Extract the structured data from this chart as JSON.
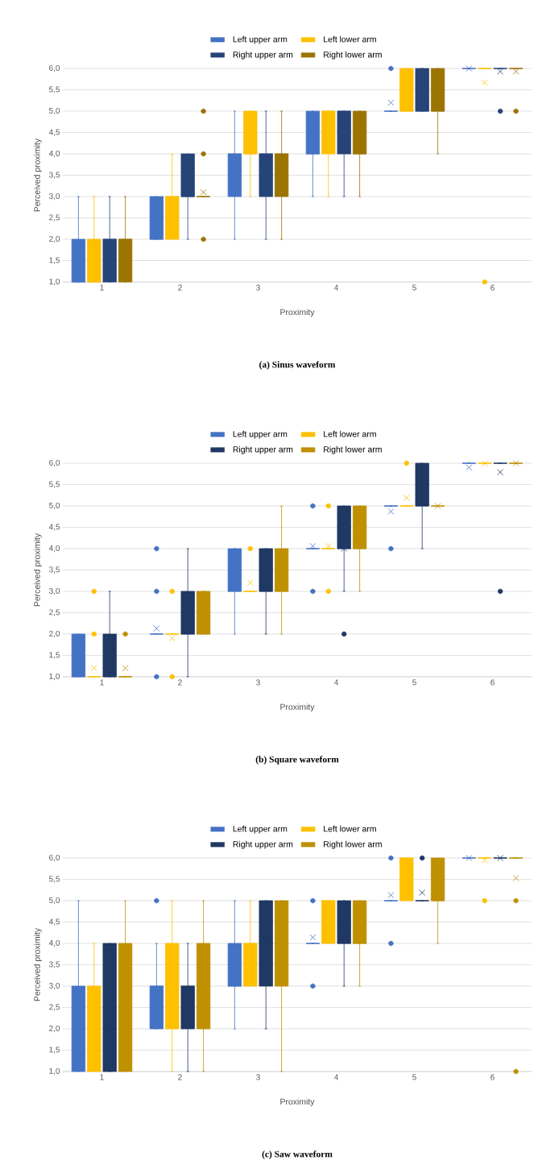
{
  "chart_data": [
    {
      "type": "box",
      "title": "(a) Sinus waveform",
      "xlabel": "Proximity",
      "ylabel": "Perceived proximity",
      "categories": [
        "1",
        "2",
        "3",
        "4",
        "5",
        "6"
      ],
      "ylim": [
        1,
        6
      ],
      "yticks": [
        {
          "value": 1,
          "label": "1,0"
        },
        {
          "value": 1.5,
          "label": "1,5"
        },
        {
          "value": 2,
          "label": "2,0"
        },
        {
          "value": 2.5,
          "label": "2,5"
        },
        {
          "value": 3,
          "label": "3,0"
        },
        {
          "value": 3.5,
          "label": "3,5"
        },
        {
          "value": 4,
          "label": "4,0"
        },
        {
          "value": 4.5,
          "label": "4,5"
        },
        {
          "value": 5,
          "label": "5,0"
        },
        {
          "value": 5.5,
          "label": "5,5"
        },
        {
          "value": 6,
          "label": "6,0"
        }
      ],
      "grid": "y",
      "legend": "top",
      "series": [
        {
          "name": "Left upper arm",
          "color": "#4472c4",
          "boxes": [
            {
              "low": 1,
              "q1": 1,
              "median": 1,
              "q3": 2,
              "high": 3,
              "mean": 1.46
            },
            {
              "low": 2,
              "q1": 2,
              "median": 2,
              "q3": 3,
              "high": 3,
              "mean": 2.48
            },
            {
              "low": 2,
              "q1": 3,
              "median": 4,
              "q3": 4,
              "high": 5,
              "mean": 3.53
            },
            {
              "low": 3,
              "q1": 4,
              "median": 4,
              "q3": 5,
              "high": 5,
              "mean": 4.19
            },
            {
              "low": 5,
              "q1": 5,
              "median": 5,
              "q3": 5,
              "high": 5,
              "mean": 5.2,
              "outliers": [
                6
              ]
            },
            {
              "low": 6,
              "q1": 6,
              "median": 6,
              "q3": 6,
              "high": 6,
              "mean": 6
            }
          ]
        },
        {
          "name": "Left lower arm",
          "color": "#ffc000",
          "boxes": [
            {
              "low": 1,
              "q1": 1,
              "median": 1,
              "q3": 2,
              "high": 3,
              "mean": 1.46
            },
            {
              "low": 2,
              "q1": 2,
              "median": 3,
              "q3": 3,
              "high": 4,
              "mean": 2.59
            },
            {
              "low": 3,
              "q1": 4,
              "median": 4,
              "q3": 5,
              "high": 5,
              "mean": 4.09
            },
            {
              "low": 3,
              "q1": 4,
              "median": 5,
              "q3": 5,
              "high": 5,
              "mean": 4.66
            },
            {
              "low": 5,
              "q1": 5,
              "median": 5,
              "q3": 6,
              "high": 6,
              "mean": 5.41
            },
            {
              "low": 6,
              "q1": 6,
              "median": 6,
              "q3": 6,
              "high": 6,
              "mean": 5.67,
              "outliers": [
                1
              ]
            }
          ]
        },
        {
          "name": "Right upper arm",
          "color": "#264478",
          "boxes": [
            {
              "low": 1,
              "q1": 1,
              "median": 2,
              "q3": 2,
              "high": 3,
              "mean": 1.76
            },
            {
              "low": 2,
              "q1": 3,
              "median": 3,
              "q3": 4,
              "high": 4,
              "mean": 3.1
            },
            {
              "low": 2,
              "q1": 3,
              "median": 4,
              "q3": 4,
              "high": 5,
              "mean": 3.8
            },
            {
              "low": 3,
              "q1": 4,
              "median": 5,
              "q3": 5,
              "high": 5,
              "mean": 4.45
            },
            {
              "low": 5,
              "q1": 5,
              "median": 5,
              "q3": 6,
              "high": 6,
              "mean": 5.34
            },
            {
              "low": 6,
              "q1": 6,
              "median": 6,
              "q3": 6,
              "high": 6,
              "mean": 5.93,
              "outliers": [
                5
              ]
            }
          ]
        },
        {
          "name": "Right lower arm",
          "color": "#9c7400",
          "boxes": [
            {
              "low": 1,
              "q1": 1,
              "median": 2,
              "q3": 2,
              "high": 3,
              "mean": 1.86
            },
            {
              "low": 3,
              "q1": 3,
              "median": 3,
              "q3": 3,
              "high": 3,
              "mean": 3.1,
              "outliers": [
                2,
                4,
                5
              ]
            },
            {
              "low": 2,
              "q1": 3,
              "median": 4,
              "q3": 4,
              "high": 5,
              "mean": 3.6
            },
            {
              "low": 3,
              "q1": 4,
              "median": 4,
              "q3": 5,
              "high": 5,
              "mean": 4.41
            },
            {
              "low": 4,
              "q1": 5,
              "median": 5,
              "q3": 6,
              "high": 6,
              "mean": 5.12
            },
            {
              "low": 6,
              "q1": 6,
              "median": 6,
              "q3": 6,
              "high": 6,
              "mean": 5.93,
              "outliers": [
                5
              ]
            }
          ]
        }
      ]
    },
    {
      "type": "box",
      "title": "(b) Square waveform",
      "xlabel": "Proximity",
      "ylabel": "Perceived proximity",
      "categories": [
        "1",
        "2",
        "3",
        "4",
        "5",
        "6"
      ],
      "ylim": [
        1,
        6
      ],
      "yticks": [
        {
          "value": 1,
          "label": "1,0"
        },
        {
          "value": 1.5,
          "label": "1,5"
        },
        {
          "value": 2,
          "label": "2,0"
        },
        {
          "value": 2.5,
          "label": "2,5"
        },
        {
          "value": 3,
          "label": "3,0"
        },
        {
          "value": 3.5,
          "label": "3,5"
        },
        {
          "value": 4,
          "label": "4,0"
        },
        {
          "value": 4.5,
          "label": "4,5"
        },
        {
          "value": 5,
          "label": "5,0"
        },
        {
          "value": 5.5,
          "label": "5,5"
        },
        {
          "value": 6,
          "label": "6,0"
        }
      ],
      "grid": "y",
      "legend": "top",
      "series": [
        {
          "name": "Left upper arm",
          "color": "#4472c4",
          "boxes": [
            {
              "low": 1,
              "q1": 1,
              "median": 1,
              "q3": 2,
              "high": 2,
              "mean": 1.28
            },
            {
              "low": 2,
              "q1": 2,
              "median": 2,
              "q3": 2,
              "high": 2,
              "mean": 2.13,
              "outliers": [
                1,
                3,
                4
              ]
            },
            {
              "low": 2,
              "q1": 3,
              "median": 3,
              "q3": 4,
              "high": 4,
              "mean": 3.15
            },
            {
              "low": 4,
              "q1": 4,
              "median": 4,
              "q3": 4,
              "high": 4,
              "mean": 4.06,
              "outliers": [
                3,
                5
              ]
            },
            {
              "low": 5,
              "q1": 5,
              "median": 5,
              "q3": 5,
              "high": 5,
              "mean": 4.87,
              "outliers": [
                4
              ]
            },
            {
              "low": 6,
              "q1": 6,
              "median": 6,
              "q3": 6,
              "high": 6,
              "mean": 5.9
            }
          ]
        },
        {
          "name": "Left lower arm",
          "color": "#ffc000",
          "boxes": [
            {
              "low": 1,
              "q1": 1,
              "median": 1,
              "q3": 1,
              "high": 1,
              "mean": 1.2,
              "outliers": [
                2,
                3
              ]
            },
            {
              "low": 2,
              "q1": 2,
              "median": 2,
              "q3": 2,
              "high": 2,
              "mean": 1.9,
              "outliers": [
                1,
                3
              ]
            },
            {
              "low": 3,
              "q1": 3,
              "median": 3,
              "q3": 3,
              "high": 3,
              "mean": 3.2,
              "outliers": [
                4
              ]
            },
            {
              "low": 4,
              "q1": 4,
              "median": 4,
              "q3": 4,
              "high": 4,
              "mean": 4.06,
              "outliers": [
                3,
                5
              ]
            },
            {
              "low": 5,
              "q1": 5,
              "median": 5,
              "q3": 5,
              "high": 5,
              "mean": 5.19,
              "outliers": [
                6
              ]
            },
            {
              "low": 6,
              "q1": 6,
              "median": 6,
              "q3": 6,
              "high": 6,
              "mean": 6
            }
          ]
        },
        {
          "name": "Right upper arm",
          "color": "#203864",
          "boxes": [
            {
              "low": 1,
              "q1": 1,
              "median": 1,
              "q3": 2,
              "high": 3,
              "mean": 1.41
            },
            {
              "low": 1,
              "q1": 2,
              "median": 2,
              "q3": 3,
              "high": 4,
              "mean": 2.33
            },
            {
              "low": 2,
              "q1": 3,
              "median": 3,
              "q3": 4,
              "high": 4,
              "mean": 3.08
            },
            {
              "low": 3,
              "q1": 4,
              "median": 4,
              "q3": 5,
              "high": 5,
              "mean": 4.0,
              "outliers": [
                2
              ]
            },
            {
              "low": 4,
              "q1": 5,
              "median": 5,
              "q3": 6,
              "high": 6,
              "mean": 5.15
            },
            {
              "low": 6,
              "q1": 6,
              "median": 6,
              "q3": 6,
              "high": 6,
              "mean": 5.79,
              "outliers": [
                3
              ]
            }
          ]
        },
        {
          "name": "Right lower arm",
          "color": "#bf9000",
          "boxes": [
            {
              "low": 1,
              "q1": 1,
              "median": 1,
              "q3": 1,
              "high": 1,
              "mean": 1.2,
              "outliers": [
                2
              ]
            },
            {
              "low": 2,
              "q1": 2,
              "median": 2,
              "q3": 3,
              "high": 3,
              "mean": 2.46
            },
            {
              "low": 2,
              "q1": 3,
              "median": 3,
              "q3": 4,
              "high": 5,
              "mean": 3.47
            },
            {
              "low": 3,
              "q1": 4,
              "median": 4,
              "q3": 5,
              "high": 5,
              "mean": 4.33
            },
            {
              "low": 5,
              "q1": 5,
              "median": 5,
              "q3": 5,
              "high": 5,
              "mean": 5.0
            },
            {
              "low": 6,
              "q1": 6,
              "median": 6,
              "q3": 6,
              "high": 6,
              "mean": 6
            }
          ]
        }
      ]
    },
    {
      "type": "box",
      "title": "(c) Saw waveform",
      "xlabel": "Proximity",
      "ylabel": "Perceived proximity",
      "categories": [
        "1",
        "2",
        "3",
        "4",
        "5",
        "6"
      ],
      "ylim": [
        1,
        6
      ],
      "yticks": [
        {
          "value": 1,
          "label": "1,0"
        },
        {
          "value": 1.5,
          "label": "1,5"
        },
        {
          "value": 2,
          "label": "2,0"
        },
        {
          "value": 2.5,
          "label": "2,5"
        },
        {
          "value": 3,
          "label": "3,0"
        },
        {
          "value": 3.5,
          "label": "3,5"
        },
        {
          "value": 4,
          "label": "4,0"
        },
        {
          "value": 4.5,
          "label": "4,5"
        },
        {
          "value": 5,
          "label": "5,0"
        },
        {
          "value": 5.5,
          "label": "5,5"
        },
        {
          "value": 6,
          "label": "6,0"
        }
      ],
      "grid": "y",
      "legend": "top",
      "series": [
        {
          "name": "Left upper arm",
          "color": "#4472c4",
          "boxes": [
            {
              "low": 1,
              "q1": 1,
              "median": 2,
              "q3": 3,
              "high": 5,
              "mean": 2.21
            },
            {
              "low": 2,
              "q1": 2,
              "median": 3,
              "q3": 3,
              "high": 4,
              "mean": 2.72,
              "outliers": [
                5
              ]
            },
            {
              "low": 2,
              "q1": 3,
              "median": 3,
              "q3": 4,
              "high": 5,
              "mean": 3.47
            },
            {
              "low": 4,
              "q1": 4,
              "median": 4,
              "q3": 4,
              "high": 4,
              "mean": 4.14,
              "outliers": [
                3,
                5
              ]
            },
            {
              "low": 5,
              "q1": 5,
              "median": 5,
              "q3": 5,
              "high": 5,
              "mean": 5.13,
              "outliers": [
                4,
                6
              ]
            },
            {
              "low": 6,
              "q1": 6,
              "median": 6,
              "q3": 6,
              "high": 6,
              "mean": 6
            }
          ]
        },
        {
          "name": "Left lower arm",
          "color": "#ffc000",
          "boxes": [
            {
              "low": 1,
              "q1": 1,
              "median": 2,
              "q3": 3,
              "high": 4,
              "mean": 2.0
            },
            {
              "low": 1,
              "q1": 2,
              "median": 3,
              "q3": 4,
              "high": 5,
              "mean": 2.79
            },
            {
              "low": 3,
              "q1": 3,
              "median": 4,
              "q3": 4,
              "high": 5,
              "mean": 3.79
            },
            {
              "low": 4,
              "q1": 4,
              "median": 5,
              "q3": 5,
              "high": 5,
              "mean": 4.53
            },
            {
              "low": 5,
              "q1": 5,
              "median": 6,
              "q3": 6,
              "high": 6,
              "mean": 5.6
            },
            {
              "low": 6,
              "q1": 6,
              "median": 6,
              "q3": 6,
              "high": 6,
              "mean": 5.95,
              "outliers": [
                5
              ]
            }
          ]
        },
        {
          "name": "Right upper arm",
          "color": "#203864",
          "boxes": [
            {
              "low": 1,
              "q1": 1,
              "median": 2,
              "q3": 4,
              "high": 4,
              "mean": 2.34
            },
            {
              "low": 1,
              "q1": 2,
              "median": 3,
              "q3": 3,
              "high": 4,
              "mean": 2.67
            },
            {
              "low": 2,
              "q1": 3,
              "median": 4,
              "q3": 5,
              "high": 5,
              "mean": 3.66
            },
            {
              "low": 3,
              "q1": 4,
              "median": 4,
              "q3": 5,
              "high": 5,
              "mean": 4.2
            },
            {
              "low": 5,
              "q1": 5,
              "median": 5,
              "q3": 5,
              "high": 5,
              "mean": 5.19,
              "outliers": [
                6
              ]
            },
            {
              "low": 6,
              "q1": 6,
              "median": 6,
              "q3": 6,
              "high": 6,
              "mean": 6
            }
          ]
        },
        {
          "name": "Right lower arm",
          "color": "#bf9000",
          "boxes": [
            {
              "low": 1,
              "q1": 1,
              "median": 2,
              "q3": 4,
              "high": 5,
              "mean": 2.26
            },
            {
              "low": 1,
              "q1": 2,
              "median": 3,
              "q3": 4,
              "high": 5,
              "mean": 3.0
            },
            {
              "low": 1,
              "q1": 3,
              "median": 4,
              "q3": 5,
              "high": 5,
              "mean": 3.81
            },
            {
              "low": 3,
              "q1": 4,
              "median": 4,
              "q3": 5,
              "high": 5,
              "mean": 4.33
            },
            {
              "low": 4,
              "q1": 5,
              "median": 5,
              "q3": 6,
              "high": 6,
              "mean": 5.34
            },
            {
              "low": 6,
              "q1": 6,
              "median": 6,
              "q3": 6,
              "high": 6,
              "mean": 5.53,
              "outliers": [
                1,
                5
              ]
            }
          ]
        }
      ]
    }
  ]
}
